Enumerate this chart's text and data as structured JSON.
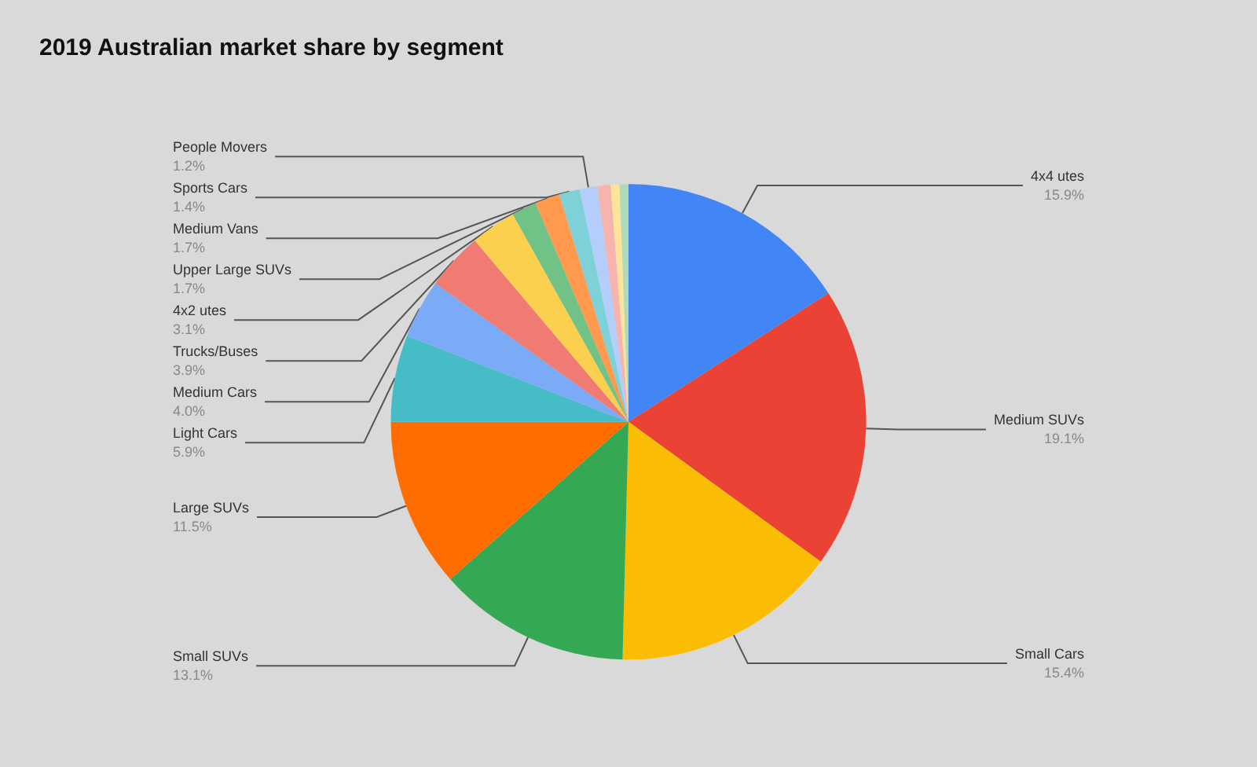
{
  "chart_data": {
    "type": "pie",
    "title": "2019 Australian market share by segment",
    "categories": [
      "4x4 utes",
      "Medium SUVs",
      "Small Cars",
      "Small SUVs",
      "Large SUVs",
      "Light Cars",
      "Medium Cars",
      "Trucks/Buses",
      "4x2 utes",
      "Upper Large SUVs",
      "Medium Vans",
      "Sports Cars",
      "People Movers",
      null,
      null,
      null
    ],
    "values": [
      15.9,
      19.1,
      15.4,
      13.1,
      11.5,
      5.9,
      4.0,
      3.9,
      3.1,
      1.7,
      1.7,
      1.4,
      1.2,
      0.9,
      0.6,
      0.6
    ],
    "value_labels": [
      "15.9%",
      "19.1%",
      "15.4%",
      "13.1%",
      "11.5%",
      "5.9%",
      "4.0%",
      "3.9%",
      "3.1%",
      "1.7%",
      "1.7%",
      "1.4%",
      "1.2%",
      null,
      null,
      null
    ],
    "colors": [
      "#4285f4",
      "#ea4335",
      "#fbbc04",
      "#34a853",
      "#ff6d01",
      "#46bdc6",
      "#7baaf7",
      "#f07b72",
      "#fcd04f",
      "#71c287",
      "#ff994d",
      "#7ed1d7",
      "#b3cefb",
      "#f7b4ae",
      "#fde49b",
      "#aedcba"
    ],
    "legend": false
  }
}
